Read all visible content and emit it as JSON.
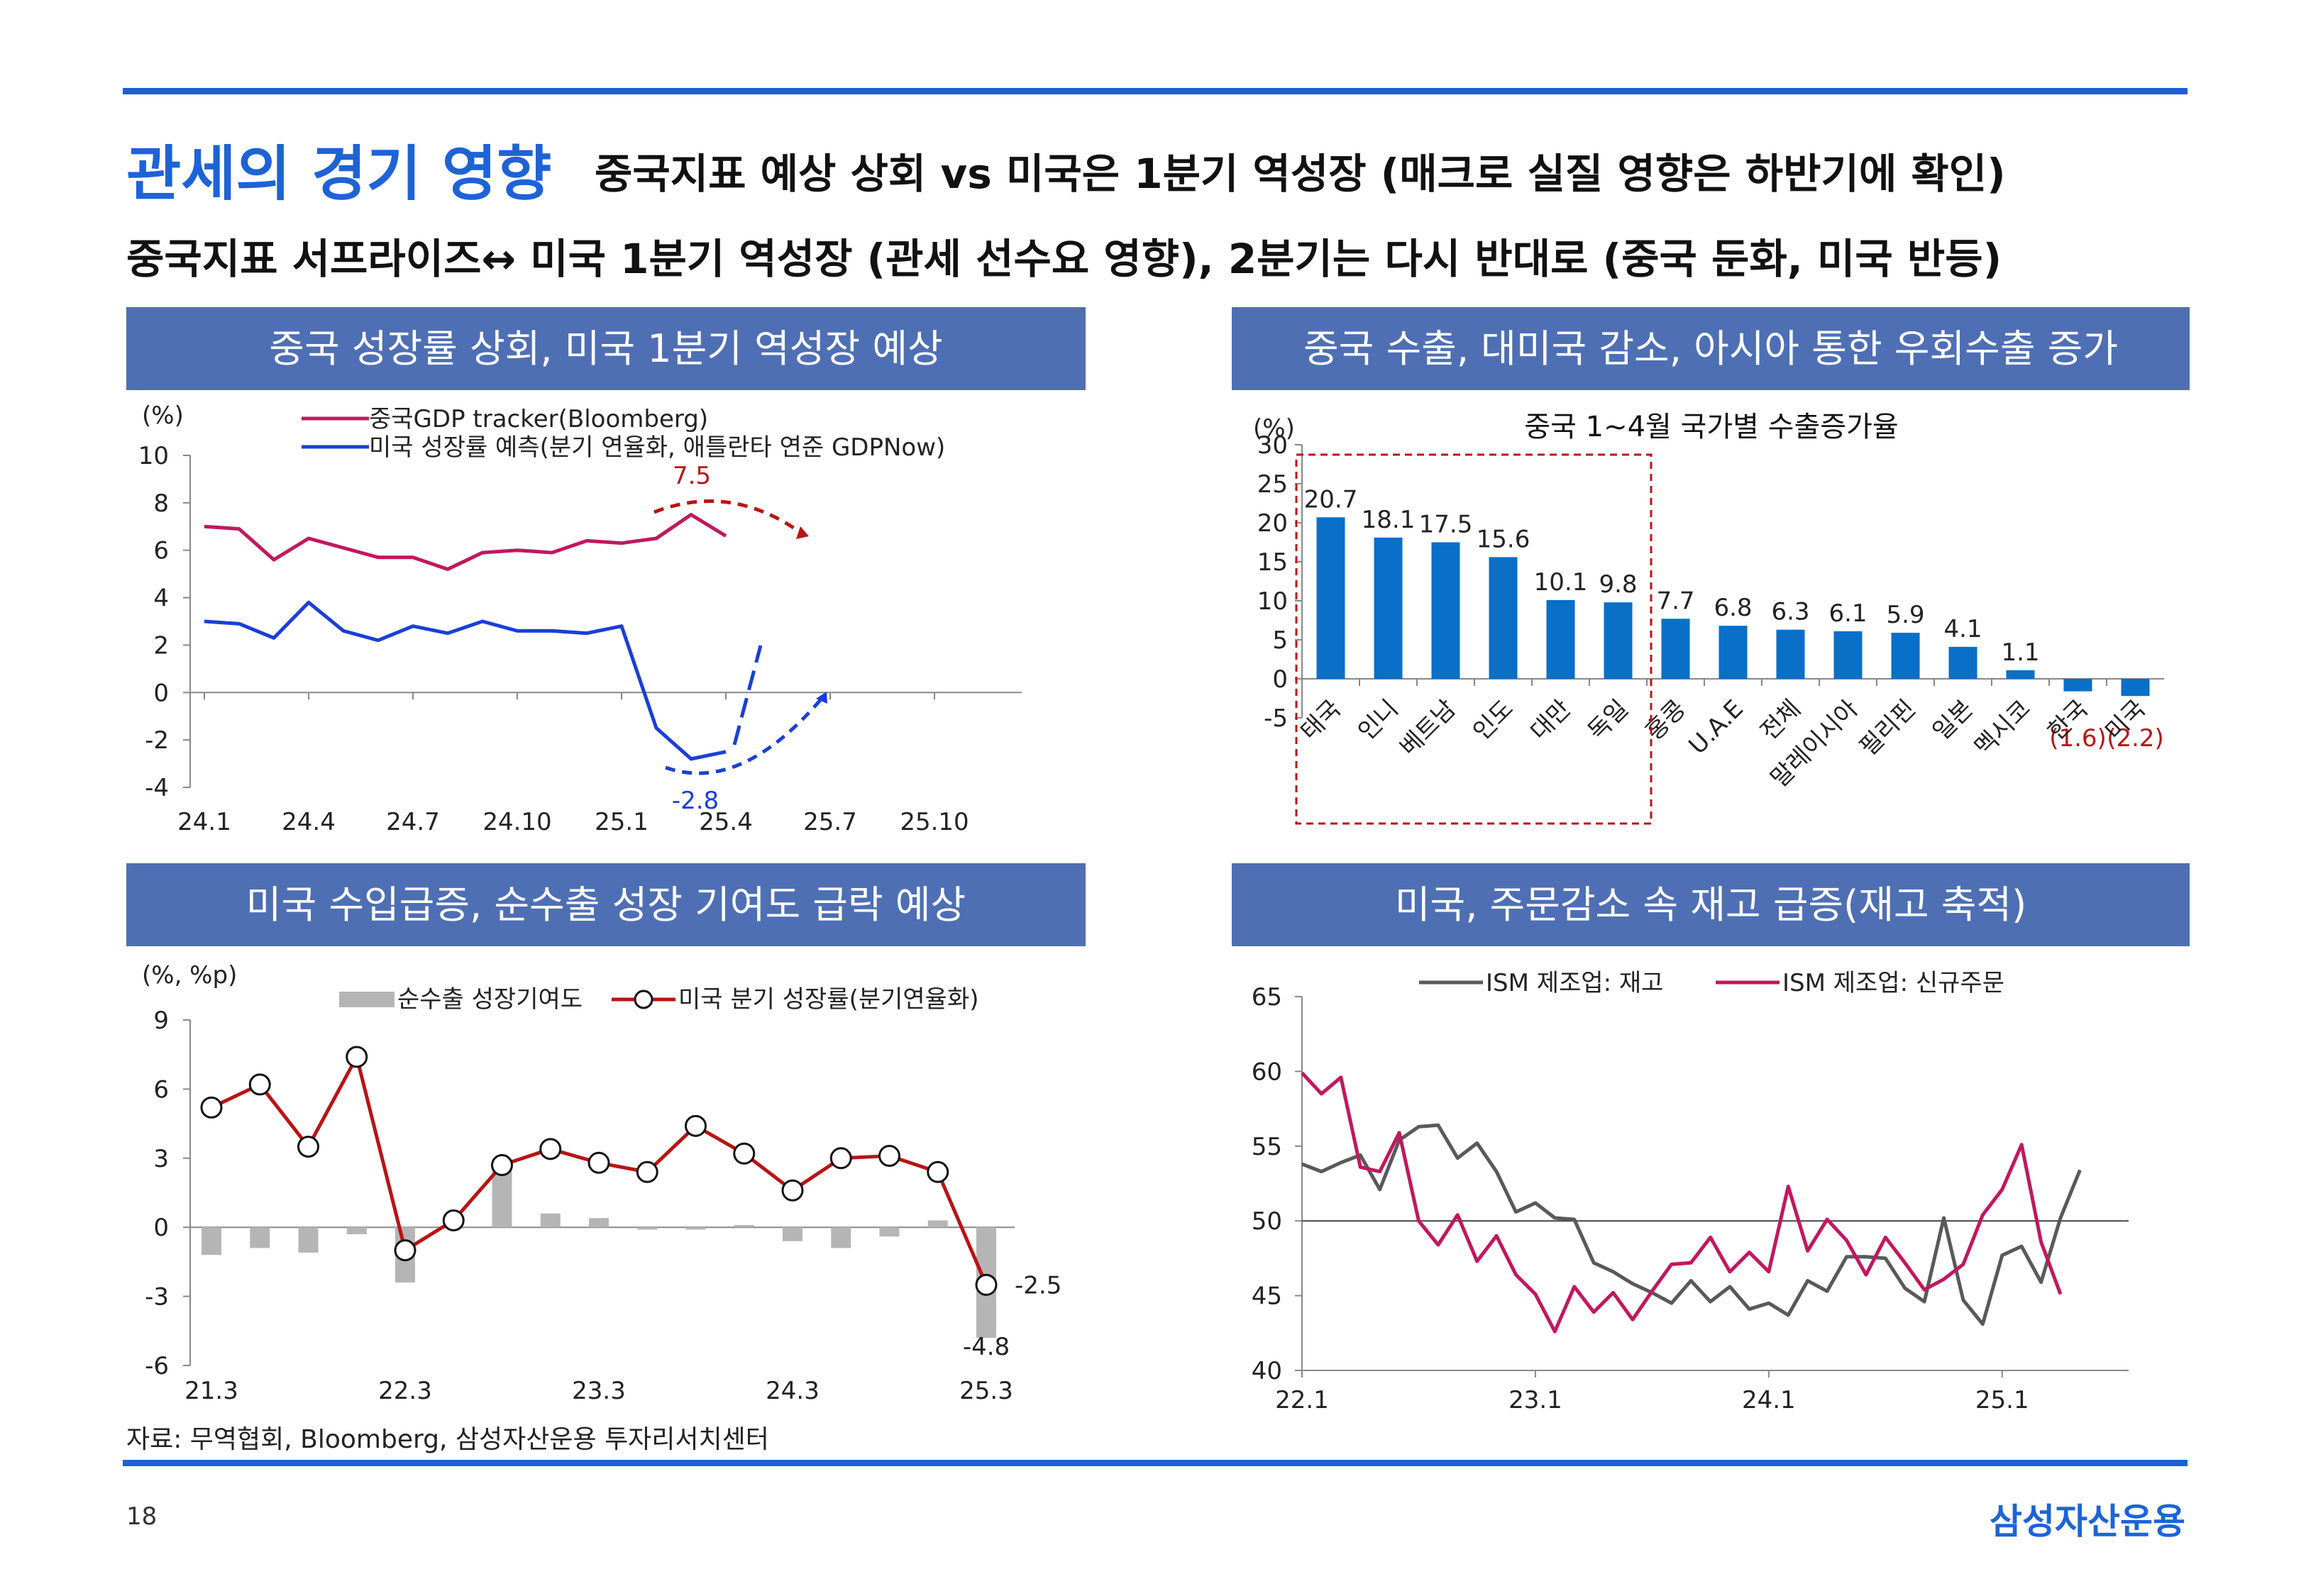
{
  "header": {
    "title_main": "관세의 경기 영향",
    "title_sub": "중국지표 예상 상회 vs 미국은 1분기 역성장 (매크로 실질 영향은 하반기에 확인)",
    "subline": "중국지표 서프라이즈↔ 미국 1분기 역성장 (관세 선수요 영향), 2분기는 다시 반대로 (중국 둔화, 미국 반등)"
  },
  "panels": {
    "p1": "중국 성장률 상회, 미국 1분기 역성장 예상",
    "p2": "중국 수출, 대미국 감소, 아시아 통한 우회수출 증가",
    "p3": "미국 수입급증, 순수출 성장 기여도 급락 예상",
    "p4": "미국, 주문감소 속 재고 급증(재고 축적)"
  },
  "colors": {
    "brand": "#1e63d6",
    "panel_head": "#4f6fb4",
    "crimson": "#c0185f",
    "blue_line": "#1a3fd6",
    "bar_blue": "#0a6fc7",
    "dark_red": "#b81414",
    "gray_bar": "#b5b5b5",
    "gray_line": "#595959"
  },
  "chart_data": [
    {
      "type": "line",
      "unit": "(%)",
      "x_labels": [
        "24.1",
        "24.4",
        "24.7",
        "24.10",
        "25.1",
        "25.4",
        "25.7",
        "25.10"
      ],
      "ylim": [
        -4,
        10
      ],
      "y_ticks": [
        "10",
        "8",
        "6",
        "4",
        "2",
        "0",
        "-2",
        "-4"
      ],
      "series": [
        {
          "name": "중국GDP tracker(Bloomberg)",
          "color": "#c0185f",
          "values": [
            7.0,
            6.9,
            5.6,
            6.5,
            6.1,
            5.7,
            5.7,
            5.2,
            5.9,
            6.0,
            5.9,
            6.4,
            6.3,
            6.5,
            7.5,
            6.6
          ]
        },
        {
          "name": "미국 성장률 예측(분기 연율화, 애틀란타 연준 GDPNow)",
          "color": "#1a3fd6",
          "values": [
            3.0,
            2.9,
            2.3,
            3.8,
            2.6,
            2.2,
            2.8,
            2.5,
            3.0,
            2.6,
            2.6,
            2.5,
            2.8,
            -1.5,
            -2.8,
            -2.5
          ]
        }
      ],
      "annotations": {
        "peak": "7.5",
        "trough": "-2.8"
      }
    },
    {
      "type": "bar",
      "title": "중국 1~4월 국가별 수출증가율",
      "unit": "(%)",
      "ylim": [
        -5,
        30
      ],
      "y_ticks": [
        "30",
        "25",
        "20",
        "15",
        "10",
        "5",
        "0",
        "-5"
      ],
      "categories": [
        "태국",
        "인니",
        "베트남",
        "인도",
        "대만",
        "독일",
        "홍콩",
        "U.A.E",
        "전체",
        "말레이시아",
        "필리핀",
        "일본",
        "멕시코",
        "한국",
        "미국"
      ],
      "values": [
        20.7,
        18.1,
        17.5,
        15.6,
        10.1,
        9.8,
        7.7,
        6.8,
        6.3,
        6.1,
        5.9,
        4.1,
        1.1,
        -1.6,
        -2.2
      ],
      "labels": [
        "20.7",
        "18.1",
        "17.5",
        "15.6",
        "10.1",
        "9.8",
        "7.7",
        "6.8",
        "6.3",
        "6.1",
        "5.9",
        "4.1",
        "1.1",
        "(1.6)",
        "(2.2)"
      ]
    },
    {
      "type": "bar",
      "unit": "(%, %p)",
      "ylim": [
        -6,
        9
      ],
      "y_ticks": [
        "9",
        "6",
        "3",
        "0",
        "-3",
        "-6"
      ],
      "x_labels": [
        "21.3",
        "22.3",
        "23.3",
        "24.3",
        "25.3"
      ],
      "series": [
        {
          "name": "순수출 성장기여도",
          "type": "bar",
          "values": [
            -1.2,
            -0.9,
            -1.1,
            -0.3,
            -2.4,
            0.0,
            2.6,
            0.6,
            0.4,
            -0.1,
            -0.1,
            0.1,
            -0.6,
            -0.9,
            -0.4,
            0.3,
            -4.8
          ]
        },
        {
          "name": "미국 분기 성장률(분기연율화)",
          "type": "line",
          "values": [
            5.2,
            6.2,
            3.5,
            7.4,
            -1.0,
            0.3,
            2.7,
            3.4,
            2.8,
            2.4,
            4.4,
            3.2,
            1.6,
            3.0,
            3.1,
            2.4,
            -2.5
          ]
        }
      ],
      "end_labels": {
        "line": "-2.5",
        "bar": "-4.8"
      }
    },
    {
      "type": "line",
      "ylim": [
        40,
        65
      ],
      "y_ticks": [
        "65",
        "60",
        "55",
        "50",
        "45",
        "40"
      ],
      "x_labels": [
        "22.1",
        "23.1",
        "24.1",
        "25.1"
      ],
      "reference": 50,
      "series": [
        {
          "name": "ISM 제조업: 재고",
          "color": "#595959",
          "values": [
            53.8,
            53.3,
            53.9,
            54.4,
            52.1,
            55.4,
            56.3,
            56.4,
            54.2,
            55.2,
            53.3,
            50.6,
            51.2,
            50.2,
            50.1,
            47.2,
            46.6,
            45.8,
            45.2,
            44.5,
            46.0,
            44.6,
            45.6,
            44.1,
            44.5,
            43.7,
            46.0,
            45.3,
            47.6,
            47.6,
            47.5,
            45.5,
            44.6,
            50.2,
            44.7,
            43.1,
            47.7,
            48.3,
            45.9,
            50.2,
            53.4
          ]
        },
        {
          "name": "ISM 제조업: 신규주문",
          "color": "#c0185f",
          "values": [
            59.9,
            58.5,
            59.6,
            53.6,
            53.3,
            55.9,
            50.0,
            48.4,
            50.4,
            47.3,
            49.0,
            46.4,
            45.1,
            42.6,
            45.6,
            43.9,
            45.2,
            43.4,
            45.3,
            47.1,
            47.2,
            48.9,
            46.6,
            47.9,
            46.6,
            52.3,
            48.0,
            50.1,
            48.7,
            46.4,
            48.9,
            47.2,
            45.4,
            46.1,
            47.1,
            50.4,
            52.1,
            55.1,
            48.6,
            45.1
          ]
        }
      ]
    }
  ],
  "source": "자료: 무역협회, Bloomberg, 삼성자산운용 투자리서치센터",
  "page_number": "18",
  "brand": "삼성자산운용"
}
